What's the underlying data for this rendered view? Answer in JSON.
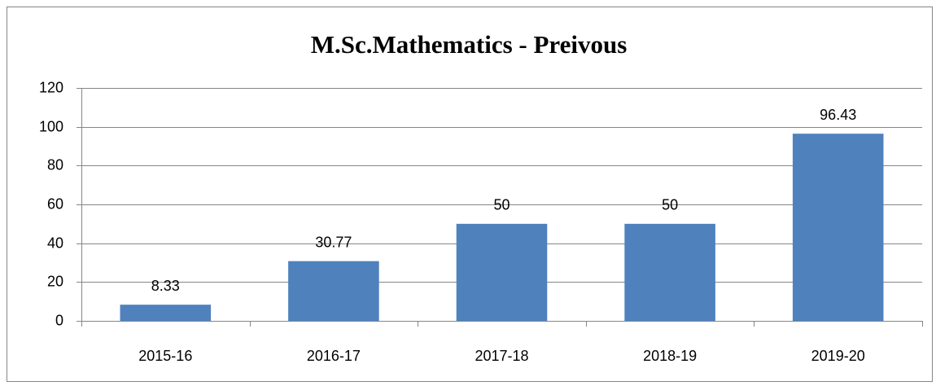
{
  "chart_data": {
    "type": "bar",
    "title": "M.Sc.Mathematics - Preivous",
    "categories": [
      "2015-16",
      "2016-17",
      "2017-18",
      "2018-19",
      "2019-20"
    ],
    "values": [
      8.33,
      30.77,
      50,
      50,
      96.43
    ],
    "color": "#4f81bd",
    "ylim": [
      0,
      120
    ],
    "yticks": [
      0,
      20,
      40,
      60,
      80,
      100,
      120
    ],
    "grid": true
  }
}
